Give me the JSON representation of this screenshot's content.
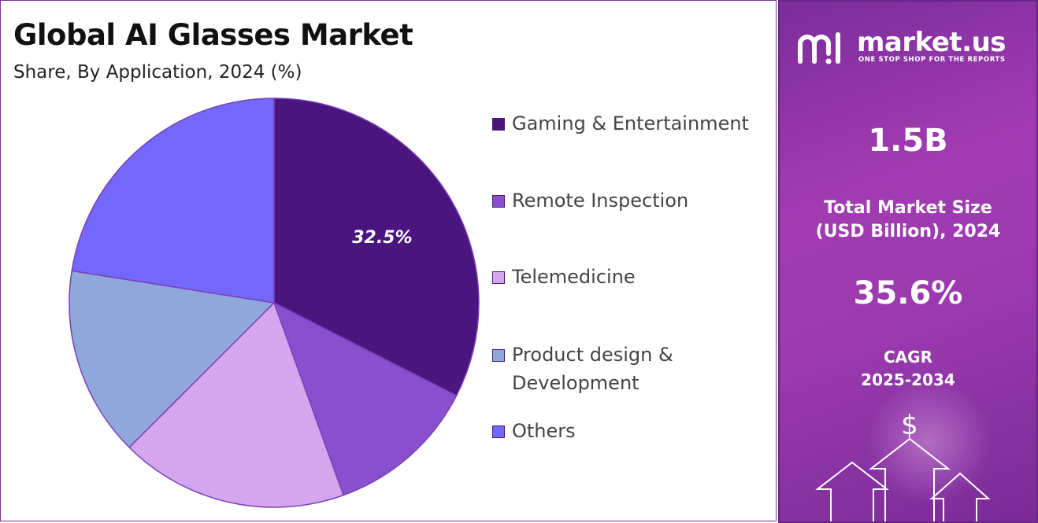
{
  "title": "Global AI Glasses Market",
  "subtitle": "Share, By Application, 2024 (%)",
  "chart_data": {
    "type": "pie",
    "categories": [
      "Gaming & Entertainment",
      "Remote Inspection",
      "Telemedicine",
      "Product design & Development",
      "Others"
    ],
    "values": [
      32.5,
      12.0,
      18.0,
      15.0,
      22.5
    ],
    "colors": [
      "#4b1580",
      "#8a4fcf",
      "#d3a6ee",
      "#8fa7da",
      "#7468fa"
    ],
    "data_labels": [
      "32.5%",
      "",
      "",
      "",
      ""
    ],
    "legend_position": "right",
    "start_angle_deg": 0,
    "direction": "clockwise"
  },
  "legend": [
    {
      "label": "Gaming & Entertainment",
      "color": "#4b1580"
    },
    {
      "label": "Remote Inspection",
      "color": "#8a4fcf"
    },
    {
      "label": "Telemedicine",
      "color": "#d3a6ee"
    },
    {
      "label": "Product design &\nDevelopment",
      "color": "#8fa7da"
    },
    {
      "label": "Others",
      "color": "#7468fa"
    }
  ],
  "side_panel": {
    "brand": "market.us",
    "tagline": "ONE STOP SHOP FOR THE REPORTS",
    "market_size_value": "1.5B",
    "market_size_label_line1": "Total Market Size",
    "market_size_label_line2": "(USD Billion), 2024",
    "cagr_value": "35.6%",
    "cagr_label": "CAGR",
    "cagr_period": "2025-2034",
    "currency_symbol": "$",
    "icons": [
      "market-us-logo-icon",
      "dollar-icon",
      "up-arrow-icon"
    ]
  }
}
